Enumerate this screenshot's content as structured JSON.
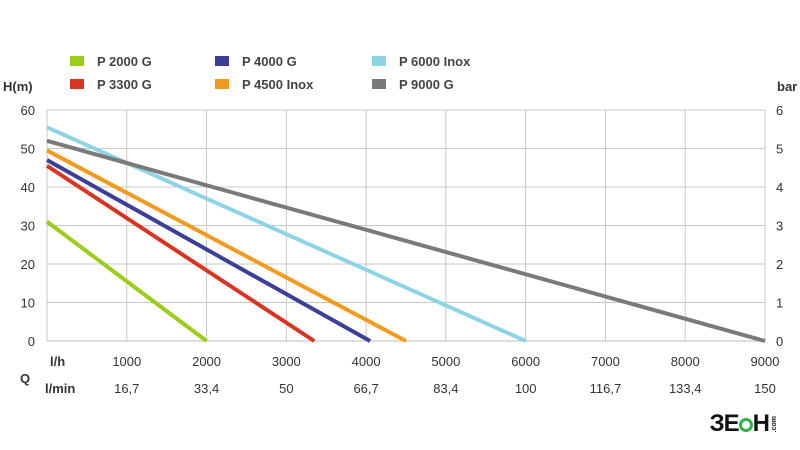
{
  "chart_data": {
    "type": "line",
    "y_left_label": "H(m)",
    "y_right_label": "bar",
    "ylim": [
      0,
      60
    ],
    "y_ticks": [
      0,
      10,
      20,
      30,
      40,
      50,
      60
    ],
    "y_right_ticks": [
      0,
      1,
      2,
      3,
      4,
      5,
      6
    ],
    "xlim": [
      0,
      9000
    ],
    "x_axis_symbol": "Q",
    "x_row1_unit": "l/h",
    "x_row1_ticks": [
      1000,
      2000,
      3000,
      4000,
      5000,
      6000,
      7000,
      8000,
      9000
    ],
    "x_row1_tick_labels": [
      "1000",
      "2000",
      "3000",
      "4000",
      "5000",
      "6000",
      "7000",
      "8000",
      "9000"
    ],
    "x_row2_unit": "l/min",
    "x_row2_tick_labels": [
      "16,7",
      "33,4",
      "50",
      "66,7",
      "83,4",
      "100",
      "116,7",
      "133,4",
      "150"
    ],
    "grid": true,
    "legend_position": "top",
    "series": [
      {
        "name": "P 2000 G",
        "color": "#9ccc1c",
        "x": [
          0,
          2000
        ],
        "y": [
          31,
          0
        ]
      },
      {
        "name": "P 3300 G",
        "color": "#d9341f",
        "x": [
          0,
          3350
        ],
        "y": [
          45.5,
          0
        ]
      },
      {
        "name": "P 4000 G",
        "color": "#3b3f9a",
        "x": [
          0,
          4050
        ],
        "y": [
          47,
          0
        ]
      },
      {
        "name": "P 4500 Inox",
        "color": "#f39a1e",
        "x": [
          0,
          4500
        ],
        "y": [
          49.5,
          0
        ]
      },
      {
        "name": "P 6000 Inox",
        "color": "#8fd3e6",
        "x": [
          0,
          6000
        ],
        "y": [
          55.5,
          0
        ]
      },
      {
        "name": "P 9000 G",
        "color": "#7a7a7a",
        "x": [
          0,
          9000
        ],
        "y": [
          52,
          0
        ]
      }
    ]
  },
  "logo": {
    "word": "ЗЕОН",
    "domain": ".com"
  }
}
